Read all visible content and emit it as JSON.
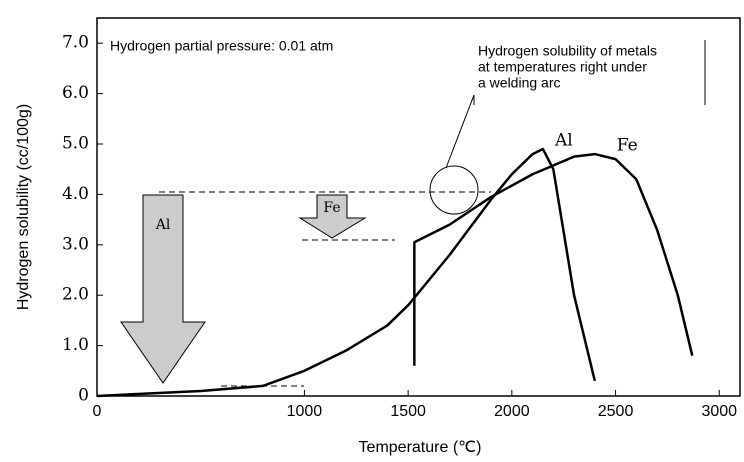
{
  "chart_data": {
    "type": "line",
    "xlabel": "Temperature (℃)",
    "ylabel": "Hydrogen solubility (cc/100g)",
    "xlim": [
      0,
      3100
    ],
    "ylim": [
      0,
      7.5
    ],
    "xticks": [
      0,
      1000,
      1500,
      2000,
      2500,
      3000
    ],
    "yticks": [
      0,
      {
        "value": 1,
        "label": "1.0"
      },
      {
        "value": 2,
        "label": "2.0"
      },
      {
        "value": 3,
        "label": "3.0"
      },
      {
        "value": 4,
        "label": "4.0"
      },
      {
        "value": 5,
        "label": "5.0"
      },
      {
        "value": 6,
        "label": "6.0"
      },
      {
        "value": 7,
        "label": "7.0"
      }
    ],
    "series": [
      {
        "name": "Al",
        "color": "#000000",
        "x": [
          0,
          500,
          800,
          1000,
          1200,
          1400,
          1500,
          1700,
          1900,
          2000,
          2100,
          2150,
          2200,
          2300,
          2400
        ],
        "values": [
          0,
          0.1,
          0.2,
          0.5,
          0.9,
          1.4,
          1.8,
          2.8,
          3.9,
          4.4,
          4.8,
          4.9,
          4.5,
          2.0,
          0.3
        ]
      },
      {
        "name": "Fe",
        "color": "#000000",
        "x": [
          1530,
          1530,
          1700,
          1900,
          2100,
          2300,
          2400,
          2500,
          2600,
          2700,
          2800,
          2870
        ],
        "values": [
          0.6,
          3.05,
          3.4,
          3.95,
          4.4,
          4.75,
          4.8,
          4.7,
          4.3,
          3.3,
          2.0,
          0.8
        ]
      }
    ],
    "annotations": [
      "Hydrogen partial pressure: 0.01 atm",
      "Hydrogen solubility of metals",
      "at temperatures right under",
      "a welding arc",
      "Al",
      "Fe"
    ]
  }
}
